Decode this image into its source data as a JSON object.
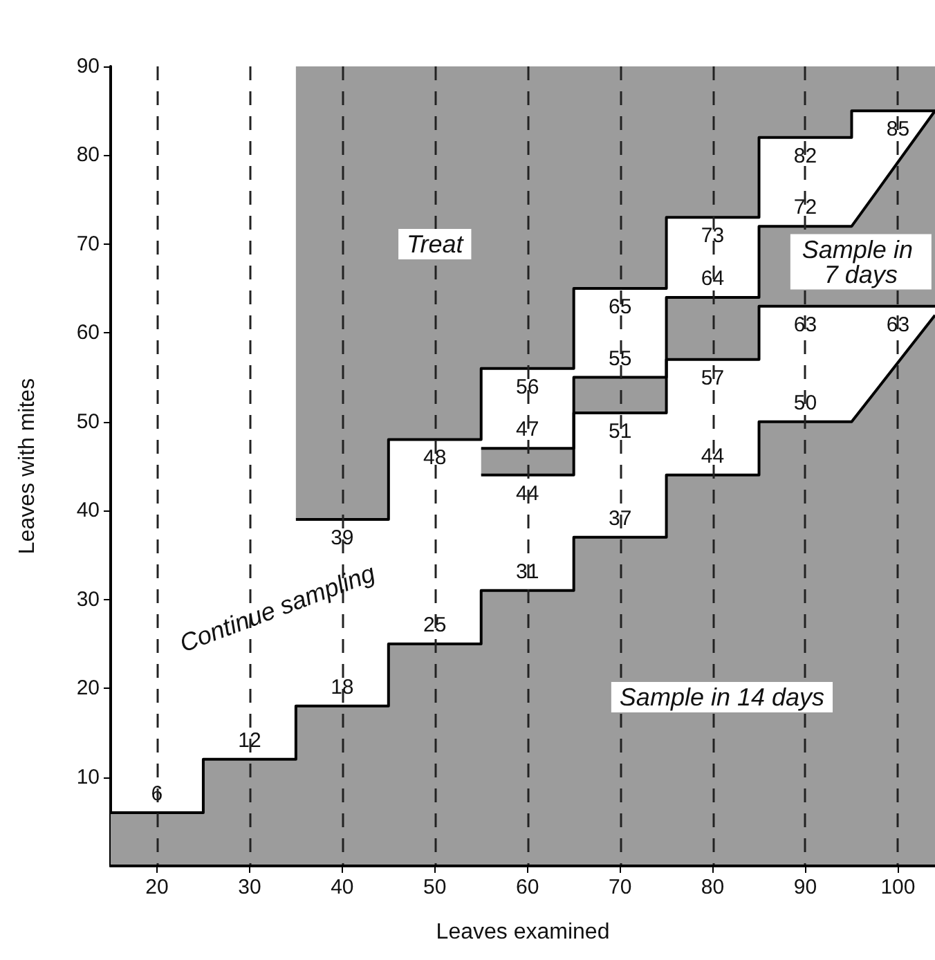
{
  "chart_data": {
    "type": "line",
    "xlabel": "Leaves examined",
    "ylabel": "Leaves with mites",
    "xlim": [
      15,
      104
    ],
    "ylim": [
      0,
      90
    ],
    "xticks": [
      20,
      30,
      40,
      50,
      60,
      70,
      80,
      90,
      100
    ],
    "yticks": [
      10,
      20,
      30,
      40,
      50,
      60,
      70,
      80,
      90
    ],
    "grid": "x",
    "series": [
      {
        "type": "area",
        "color": "#9c9c9c",
        "x": [
          15,
          20,
          25,
          25,
          30,
          35,
          35,
          40,
          45,
          45,
          50,
          55,
          55,
          60,
          65,
          65,
          70,
          75,
          75,
          80,
          85,
          85,
          90,
          95,
          104
        ],
        "values": [
          6,
          6,
          6,
          12,
          12,
          12,
          18,
          18,
          18,
          25,
          25,
          25,
          31,
          31,
          31,
          37,
          37,
          37,
          44,
          44,
          44,
          50,
          50,
          50,
          62
        ],
        "value_labels": [
          null,
          "6",
          null,
          null,
          "12",
          null,
          null,
          "18",
          null,
          null,
          "25",
          null,
          null,
          "31",
          null,
          null,
          "37",
          null,
          null,
          "44",
          null,
          null,
          "50",
          null,
          null
        ]
      },
      {
        "color": "#000000",
        "x": [
          35,
          40,
          45,
          45,
          50,
          55,
          55,
          60,
          65,
          65,
          70,
          75,
          75,
          80,
          85,
          85,
          90,
          95,
          95,
          100,
          104
        ],
        "values": [
          39,
          39,
          39,
          48,
          48,
          48,
          56,
          56,
          56,
          65,
          65,
          65,
          73,
          73,
          73,
          82,
          82,
          82,
          85,
          85,
          85
        ],
        "value_labels": [
          null,
          "39",
          null,
          null,
          "48",
          null,
          null,
          "56",
          null,
          null,
          "65",
          null,
          null,
          "73",
          null,
          null,
          "82",
          null,
          null,
          "85",
          null
        ]
      },
      {
        "color": "#000000",
        "x": [
          55,
          60,
          65,
          65,
          70,
          75,
          75,
          80,
          85,
          85,
          90,
          95,
          104
        ],
        "values": [
          47,
          47,
          47,
          55,
          55,
          55,
          64,
          64,
          64,
          72,
          72,
          72,
          85
        ],
        "value_labels": [
          null,
          "47",
          null,
          null,
          "55",
          null,
          null,
          "64",
          null,
          null,
          "72",
          null,
          null
        ]
      },
      {
        "color": "#000000",
        "x": [
          55,
          60,
          65,
          65,
          70,
          75,
          75,
          80,
          85,
          85,
          90,
          95,
          100,
          104
        ],
        "values": [
          44,
          44,
          44,
          51,
          51,
          51,
          57,
          57,
          57,
          63,
          63,
          63,
          63,
          63
        ],
        "value_labels": [
          null,
          "44",
          null,
          null,
          "51",
          null,
          null,
          "57",
          null,
          null,
          "63",
          null,
          "63",
          null
        ]
      }
    ],
    "annotations": [
      "Treat",
      "Sample in 7 days",
      "Continue sampling",
      "Sample in 14 days"
    ]
  }
}
